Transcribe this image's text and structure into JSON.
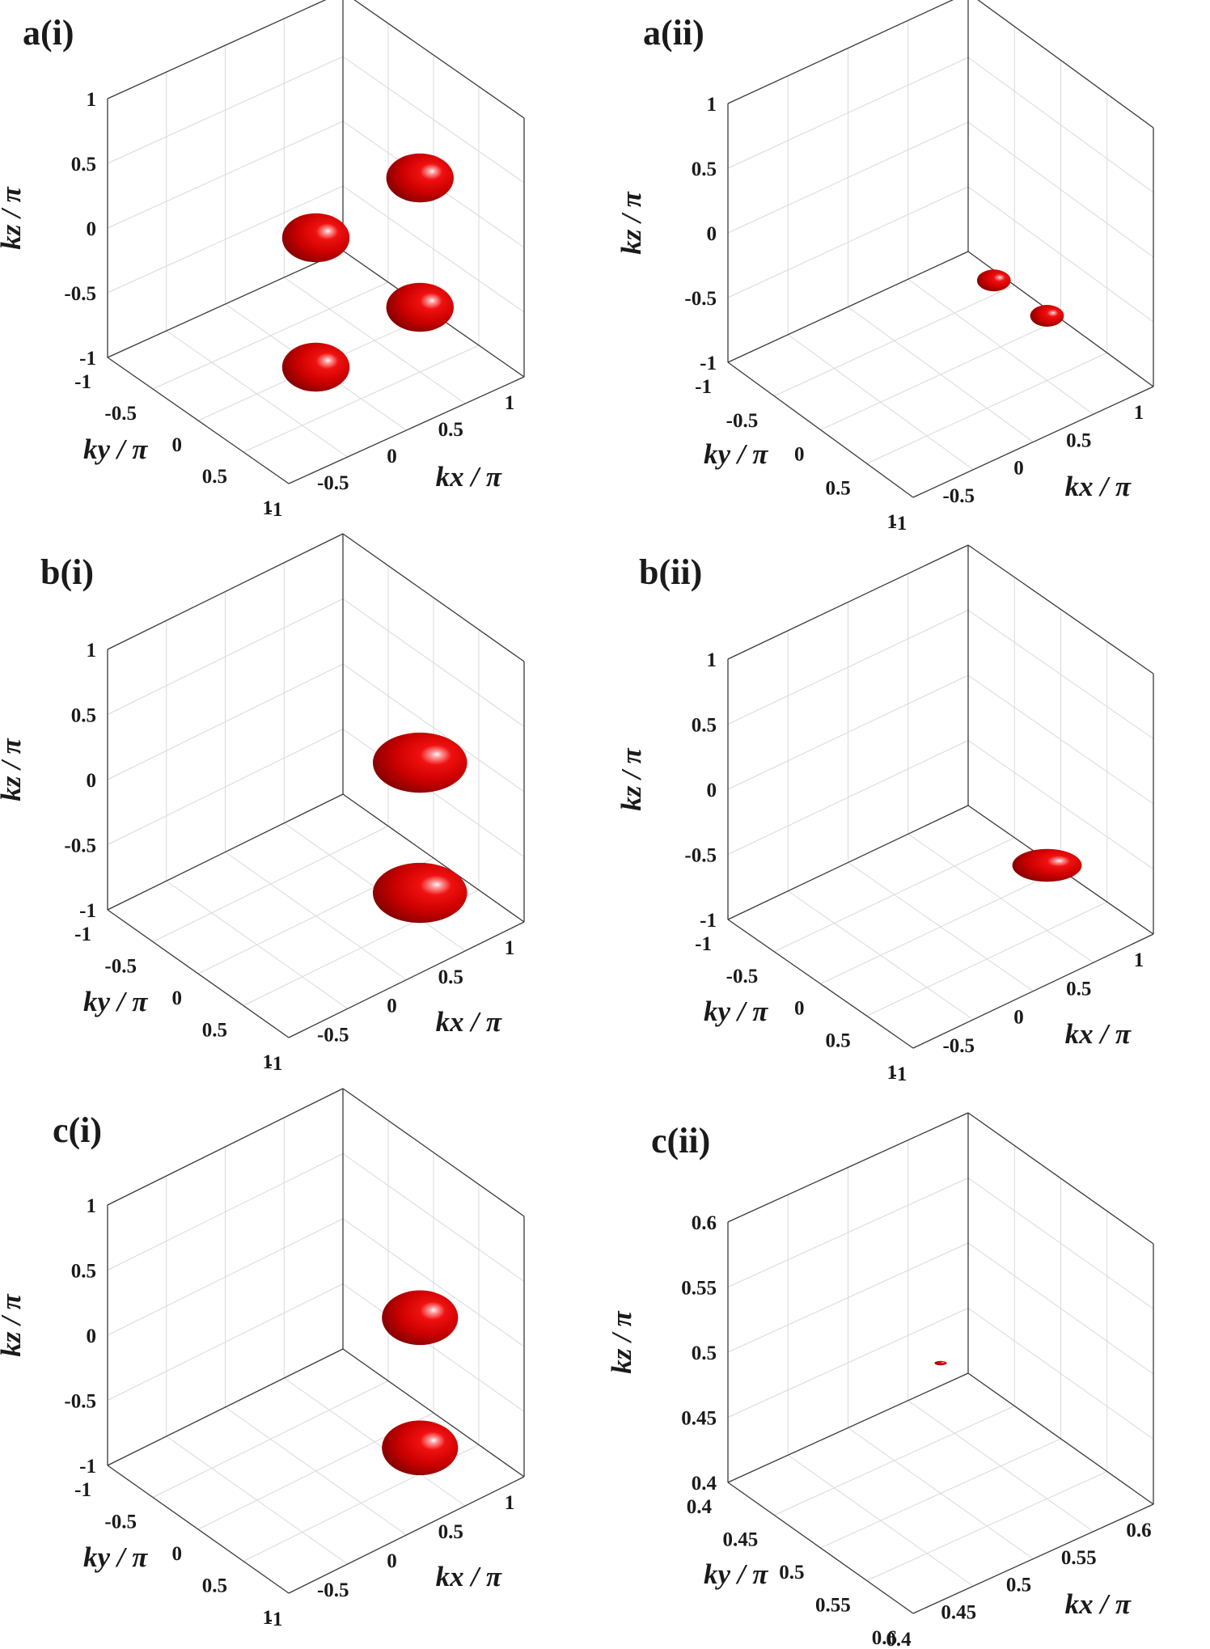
{
  "chart_data": [
    {
      "panel": "a(i)",
      "type": "isosurface",
      "xlabel": "kx / π",
      "ylabel": "ky / π",
      "zlabel": "kz / π",
      "xlim": [
        -1,
        1
      ],
      "ylim": [
        -1,
        1
      ],
      "zlim": [
        -1,
        1
      ],
      "xticks": [
        "-1",
        "-0.5",
        "0",
        "0.5",
        "1"
      ],
      "yticks": [
        "-1",
        "-0.5",
        "0",
        "0.5",
        "1"
      ],
      "zticks": [
        "-1",
        "-0.5",
        "0",
        "0.5",
        "1"
      ],
      "grid": true,
      "color": "#cc0000",
      "pockets": [
        {
          "x": 0.5,
          "y": 0.5,
          "z": 0.5,
          "rx": 0.45,
          "ry": 0.45,
          "rz": 0.45
        },
        {
          "x": 0,
          "y": 0,
          "z": 0,
          "rx": 0.45,
          "ry": 0.45,
          "rz": 0.45
        },
        {
          "x": 0.5,
          "y": 0.5,
          "z": -0.5,
          "rx": 0.45,
          "ry": 0.45,
          "rz": 0.45
        },
        {
          "x": 0,
          "y": 0,
          "z": -1,
          "rx": 0.45,
          "ry": 0.45,
          "rz": 0.45
        }
      ]
    },
    {
      "panel": "a(ii)",
      "type": "isosurface",
      "xlabel": "kx / π",
      "ylabel": "ky / π",
      "zlabel": "kz / π",
      "xlim": [
        -1,
        1
      ],
      "ylim": [
        -1,
        1
      ],
      "zlim": [
        -1,
        1
      ],
      "xticks": [
        "-1",
        "-0.5",
        "0",
        "0.5",
        "1"
      ],
      "yticks": [
        "-1",
        "-0.5",
        "0",
        "0.5",
        "1"
      ],
      "zticks": [
        "-1",
        "-0.5",
        "0",
        "0.5",
        "1"
      ],
      "grid": true,
      "color": "#cc0000",
      "pockets": [
        {
          "x": 0.25,
          "y": 0.25,
          "z": -0.25,
          "rx": 0.22,
          "ry": 0.22,
          "rz": 0.2
        },
        {
          "x": 0.5,
          "y": 0.5,
          "z": -0.5,
          "rx": 0.22,
          "ry": 0.22,
          "rz": 0.2
        }
      ]
    },
    {
      "panel": "b(i)",
      "type": "isosurface",
      "xlabel": "kx / π",
      "ylabel": "ky / π",
      "zlabel": "kz / π",
      "xlim": [
        -1,
        1
      ],
      "ylim": [
        -1,
        1
      ],
      "zlim": [
        -1,
        1
      ],
      "xticks": [
        "-1",
        "-0.5",
        "0",
        "0.5",
        "1"
      ],
      "yticks": [
        "-1",
        "-0.5",
        "0",
        "0.5",
        "1"
      ],
      "zticks": [
        "-1",
        "-0.5",
        "0",
        "0.5",
        "1"
      ],
      "grid": true,
      "color": "#cc0000",
      "pockets": [
        {
          "x": 0.5,
          "y": 0.5,
          "z": 0.2,
          "rx": 0.62,
          "ry": 0.62,
          "rz": 0.55
        },
        {
          "x": 0.5,
          "y": 0.5,
          "z": -0.8,
          "rx": 0.62,
          "ry": 0.62,
          "rz": 0.55
        }
      ]
    },
    {
      "panel": "b(ii)",
      "type": "isosurface",
      "xlabel": "kx / π",
      "ylabel": "ky / π",
      "zlabel": "kz / π",
      "xlim": [
        -1,
        1
      ],
      "ylim": [
        -1,
        1
      ],
      "zlim": [
        -1,
        1
      ],
      "xticks": [
        "-1",
        "-0.5",
        "0",
        "0.5",
        "1"
      ],
      "yticks": [
        "-1",
        "-0.5",
        "0",
        "0.5",
        "1"
      ],
      "zticks": [
        "-1",
        "-0.5",
        "0",
        "0.5",
        "1"
      ],
      "grid": true,
      "color": "#cc0000",
      "pockets": [
        {
          "x": 0.5,
          "y": 0.5,
          "z": -0.5,
          "rx": 0.45,
          "ry": 0.45,
          "rz": 0.3
        }
      ]
    },
    {
      "panel": "c(i)",
      "type": "isosurface",
      "xlabel": "kx / π",
      "ylabel": "ky / π",
      "zlabel": "kz / π",
      "xlim": [
        -1,
        1
      ],
      "ylim": [
        -1,
        1
      ],
      "zlim": [
        -1,
        1
      ],
      "xticks": [
        "-1",
        "-0.5",
        "0",
        "0.5",
        "1"
      ],
      "yticks": [
        "-1",
        "-0.5",
        "0",
        "0.5",
        "1"
      ],
      "zticks": [
        "-1",
        "-0.5",
        "0",
        "0.5",
        "1"
      ],
      "grid": true,
      "color": "#cc0000",
      "pockets": [
        {
          "x": 0.5,
          "y": 0.5,
          "z": 0.2,
          "rx": 0.5,
          "ry": 0.5,
          "rz": 0.5
        },
        {
          "x": 0.5,
          "y": 0.5,
          "z": -0.8,
          "rx": 0.5,
          "ry": 0.5,
          "rz": 0.5
        }
      ]
    },
    {
      "panel": "c(ii)",
      "type": "isosurface",
      "xlabel": "kx / π",
      "ylabel": "ky / π",
      "zlabel": "kz / π",
      "xlim": [
        0.4,
        0.6
      ],
      "ylim": [
        0.4,
        0.6
      ],
      "zlim": [
        0.4,
        0.6
      ],
      "xticks": [
        "0.4",
        "0.45",
        "0.5",
        "0.55",
        "0.6"
      ],
      "yticks": [
        "0.4",
        "0.45",
        "0.5",
        "0.55",
        "0.6"
      ],
      "zticks": [
        "0.4",
        "0.45",
        "0.5",
        "0.55",
        "0.6"
      ],
      "grid": true,
      "color": "#cc0000",
      "pockets": [
        {
          "x": 0.5,
          "y": 0.5,
          "z": 0.5,
          "rx": 0.008,
          "ry": 0.008,
          "rz": 0.004
        }
      ]
    }
  ]
}
